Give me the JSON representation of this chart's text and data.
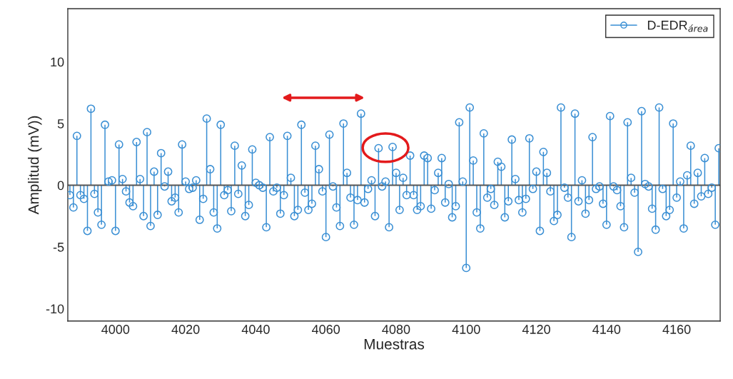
{
  "chart_data": {
    "type": "lollipop",
    "xlabel": "Muestras",
    "ylabel": "Amplitud (mV))",
    "x": [
      3987,
      3988,
      3989,
      3990,
      3991,
      3992,
      3993,
      3994,
      3995,
      3996,
      3997,
      3998,
      3999,
      4000,
      4001,
      4002,
      4003,
      4004,
      4005,
      4006,
      4007,
      4008,
      4009,
      4010,
      4011,
      4012,
      4013,
      4014,
      4015,
      4016,
      4017,
      4018,
      4019,
      4020,
      4021,
      4022,
      4023,
      4024,
      4025,
      4026,
      4027,
      4028,
      4029,
      4030,
      4031,
      4032,
      4033,
      4034,
      4035,
      4036,
      4037,
      4038,
      4039,
      4040,
      4041,
      4042,
      4043,
      4044,
      4045,
      4046,
      4047,
      4048,
      4049,
      4050,
      4051,
      4052,
      4053,
      4054,
      4055,
      4056,
      4057,
      4058,
      4059,
      4060,
      4061,
      4062,
      4063,
      4064,
      4065,
      4066,
      4067,
      4068,
      4069,
      4070,
      4071,
      4072,
      4073,
      4074,
      4075,
      4076,
      4077,
      4078,
      4079,
      4080,
      4081,
      4082,
      4083,
      4084,
      4085,
      4086,
      4087,
      4088,
      4089,
      4090,
      4091,
      4092,
      4093,
      4094,
      4095,
      4096,
      4097,
      4098,
      4099,
      4100,
      4101,
      4102,
      4103,
      4104,
      4105,
      4106,
      4107,
      4108,
      4109,
      4110,
      4111,
      4112,
      4113,
      4114,
      4115,
      4116,
      4117,
      4118,
      4119,
      4120,
      4121,
      4122,
      4123,
      4124,
      4125,
      4126,
      4127,
      4128,
      4129,
      4130,
      4131,
      4132,
      4133,
      4134,
      4135,
      4136,
      4137,
      4138,
      4139,
      4140,
      4141,
      4142,
      4143,
      4144,
      4145,
      4146,
      4147,
      4148,
      4149,
      4150,
      4151,
      4152,
      4153,
      4154,
      4155,
      4156,
      4157,
      4158,
      4159,
      4160,
      4161,
      4162,
      4163,
      4164,
      4165,
      4166,
      4167,
      4168,
      4169,
      4170,
      4171,
      4172
    ],
    "series": [
      {
        "name": "D-EDR$_{área}$",
        "color": "#3a8fd4",
        "values": [
          -0.8,
          -1.8,
          4.0,
          -0.8,
          -1.1,
          -3.7,
          6.2,
          -0.7,
          -2.2,
          -3.2,
          4.9,
          0.3,
          0.4,
          -3.7,
          3.3,
          0.5,
          -0.5,
          -1.4,
          -1.7,
          3.5,
          0.5,
          -2.5,
          4.3,
          -3.3,
          1.1,
          -2.4,
          2.6,
          -0.1,
          1.1,
          -1.3,
          -1.0,
          -2.2,
          3.3,
          0.3,
          -0.3,
          -0.2,
          0.4,
          -2.8,
          -1.1,
          5.4,
          1.3,
          -2.2,
          -3.5,
          4.9,
          -0.8,
          -0.4,
          -2.1,
          3.2,
          -0.7,
          1.6,
          -2.5,
          -1.6,
          2.9,
          0.2,
          0.0,
          -0.2,
          -3.4,
          3.9,
          -0.5,
          -0.2,
          -2.3,
          -0.8,
          4.0,
          0.6,
          -2.5,
          -2.0,
          4.9,
          -0.6,
          -2.0,
          -1.5,
          3.2,
          1.3,
          -0.5,
          -4.2,
          4.1,
          -0.1,
          -1.8,
          -3.3,
          5.0,
          1.0,
          -1.0,
          -3.2,
          -1.2,
          5.8,
          -1.4,
          -0.3,
          0.4,
          -2.5,
          3.0,
          -0.1,
          0.3,
          -3.4,
          3.1,
          1.0,
          -2.0,
          0.6,
          -0.8,
          2.4,
          -0.8,
          -2.0,
          -1.7,
          2.4,
          2.2,
          -1.9,
          -0.4,
          1.0,
          2.2,
          -1.4,
          0.1,
          -2.6,
          -1.7,
          5.1,
          0.3,
          -6.7,
          6.3,
          2.0,
          -2.2,
          -3.5,
          4.2,
          -1.0,
          -0.3,
          -1.6,
          1.9,
          1.5,
          -2.6,
          -1.3,
          3.7,
          0.5,
          -1.2,
          -2.2,
          -1.1,
          3.8,
          -0.3,
          1.1,
          -3.7,
          2.7,
          1.0,
          -0.5,
          -2.9,
          -2.4,
          6.3,
          -0.2,
          -1.0,
          -4.2,
          5.8,
          -1.3,
          0.4,
          -2.3,
          -1.2,
          3.9,
          -0.3,
          -0.1,
          -1.5,
          -3.2,
          5.6,
          -0.1,
          -0.4,
          -1.7,
          -3.4,
          5.1,
          0.6,
          -0.6,
          -5.4,
          6.0,
          0.1,
          -0.1,
          -1.9,
          -3.6,
          6.3,
          -0.3,
          -2.5,
          -2.0,
          5.0,
          -1.0,
          0.3,
          -3.5,
          0.8,
          3.2,
          -1.5,
          1.0,
          -0.9,
          2.2,
          -0.7,
          -0.2,
          -3.2,
          3.0
        ]
      }
    ],
    "xlim": [
      3986.4,
      4172.4
    ],
    "xticks": [
      4000,
      4020,
      4040,
      4060,
      4080,
      4100,
      4120,
      4140,
      4160
    ],
    "ylim": [
      -11,
      14.3
    ],
    "yticks": [
      -10,
      -5,
      0,
      5,
      10
    ],
    "ref_lines": [
      {
        "axis": "y",
        "value": 0,
        "color": "#555555"
      }
    ],
    "marker": "circle",
    "legend": "top right"
  }
}
